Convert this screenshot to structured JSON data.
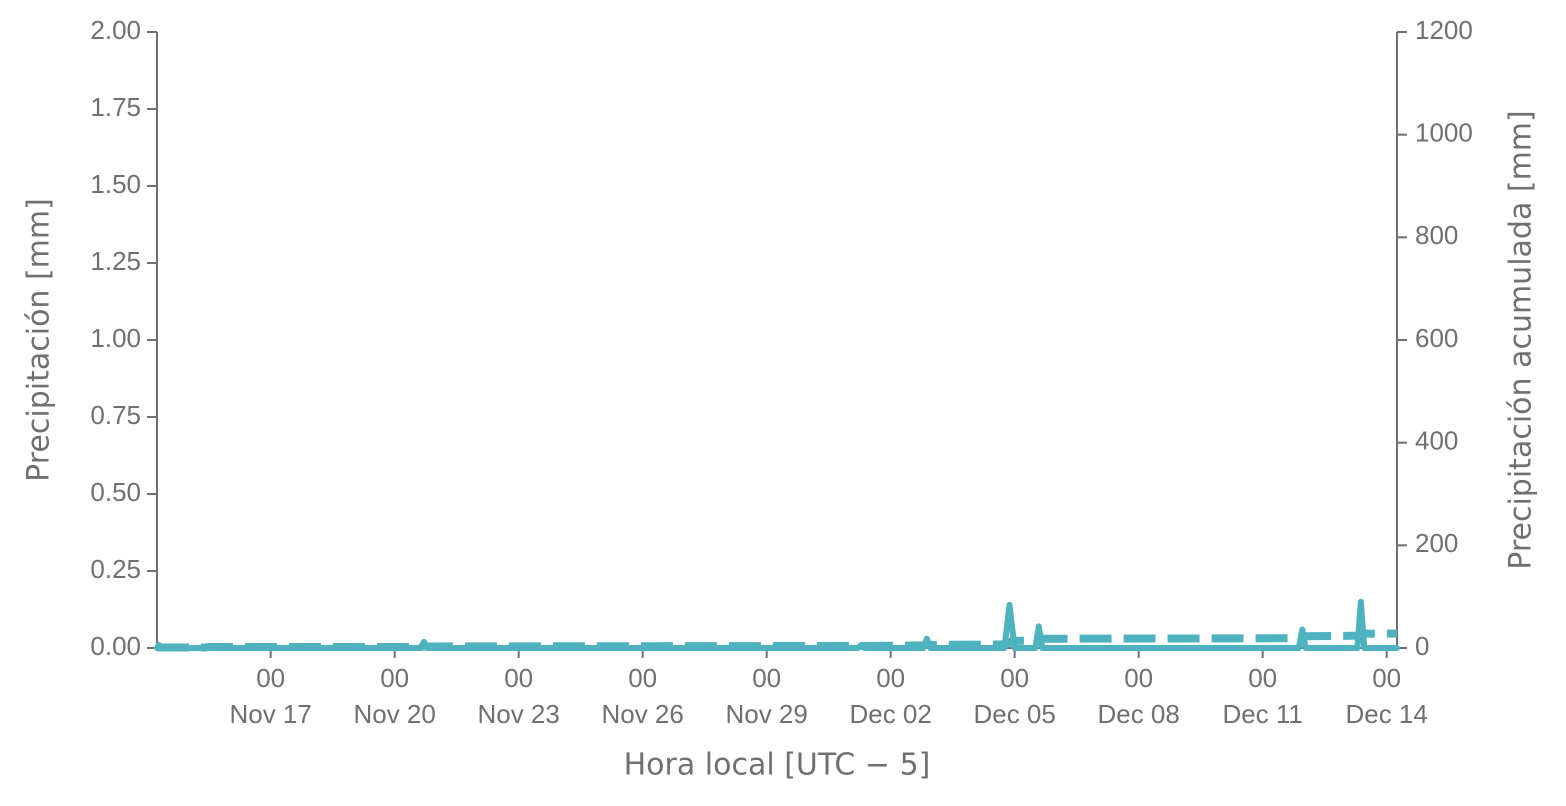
{
  "chart_data": {
    "type": "line",
    "ylabel": "Precipitación [mm]",
    "y2label": "Precipitación acumulada [mm]",
    "xlabel": "Hora local [UTC − 5]",
    "x": [
      "Nov 14 06",
      "Nov 14 07",
      "Nov 14 09",
      "Nov 15 10",
      "Nov 15 12",
      "Nov 15 14",
      "Nov 20 15",
      "Nov 20 17",
      "Nov 20 19",
      "Dec 01 05",
      "Dec 01 07",
      "Dec 01 09",
      "Dec 02 19",
      "Dec 02 21",
      "Dec 02 23",
      "Dec 04 18",
      "Dec 04 20",
      "Dec 04 21",
      "Dec 04 22",
      "Dec 05 00",
      "Dec 05 12",
      "Dec 05 14",
      "Dec 05 16",
      "Dec 11 21",
      "Dec 11 23",
      "Dec 12 01",
      "Dec 13 07",
      "Dec 13 09",
      "Dec 13 11",
      "Dec 14 06"
    ],
    "series": [
      {
        "name": "Precipitación",
        "color": "#4fb3bf",
        "dash": false,
        "values": [
          0,
          0.01,
          0,
          0,
          0.005,
          0,
          0,
          0.02,
          0,
          0,
          0.01,
          0,
          0,
          0.03,
          0,
          0,
          0.09,
          0.14,
          0.09,
          0,
          0,
          0.07,
          0,
          0,
          0.06,
          0,
          0,
          0.15,
          0,
          0
        ]
      },
      {
        "name": "Precipitación acumulada",
        "color": "#4fb3bf",
        "dash": true,
        "axis": "y2",
        "values": [
          1,
          1,
          1,
          1,
          2,
          2,
          2,
          3,
          3,
          4,
          4,
          4,
          5,
          6,
          6,
          7,
          8,
          11,
          13,
          14,
          14,
          17,
          18,
          19,
          22,
          23,
          24,
          27,
          28,
          28
        ]
      }
    ],
    "xlim": [
      "Nov 14 06",
      "Dec 14 06"
    ],
    "xticks": [
      {
        "value": "Nov 17 00",
        "label": [
          "00",
          "Nov 17"
        ]
      },
      {
        "value": "Nov 20 00",
        "label": [
          "00",
          "Nov 20"
        ]
      },
      {
        "value": "Nov 23 00",
        "label": [
          "00",
          "Nov 23"
        ]
      },
      {
        "value": "Nov 26 00",
        "label": [
          "00",
          "Nov 26"
        ]
      },
      {
        "value": "Nov 29 00",
        "label": [
          "00",
          "Nov 29"
        ]
      },
      {
        "value": "Dec 02 00",
        "label": [
          "00",
          "Dec 02"
        ]
      },
      {
        "value": "Dec 05 00",
        "label": [
          "00",
          "Dec 05"
        ]
      },
      {
        "value": "Dec 08 00",
        "label": [
          "00",
          "Dec 08"
        ]
      },
      {
        "value": "Dec 11 00",
        "label": [
          "00",
          "Dec 11"
        ]
      },
      {
        "value": "Dec 14 00",
        "label": [
          "00",
          "Dec 14"
        ]
      }
    ],
    "ylim": [
      0,
      2
    ],
    "yticks": [
      {
        "value": 0,
        "label": "0.00"
      },
      {
        "value": 0.25,
        "label": "0.25"
      },
      {
        "value": 0.5,
        "label": "0.50"
      },
      {
        "value": 0.75,
        "label": "0.75"
      },
      {
        "value": 1,
        "label": "1.00"
      },
      {
        "value": 1.25,
        "label": "1.25"
      },
      {
        "value": 1.5,
        "label": "1.50"
      },
      {
        "value": 1.75,
        "label": "1.75"
      },
      {
        "value": 2,
        "label": "2.00"
      }
    ],
    "y2lim": [
      0,
      1200
    ],
    "y2ticks": [
      0,
      200,
      400,
      600,
      800,
      1000,
      1200
    ],
    "grid": false
  }
}
